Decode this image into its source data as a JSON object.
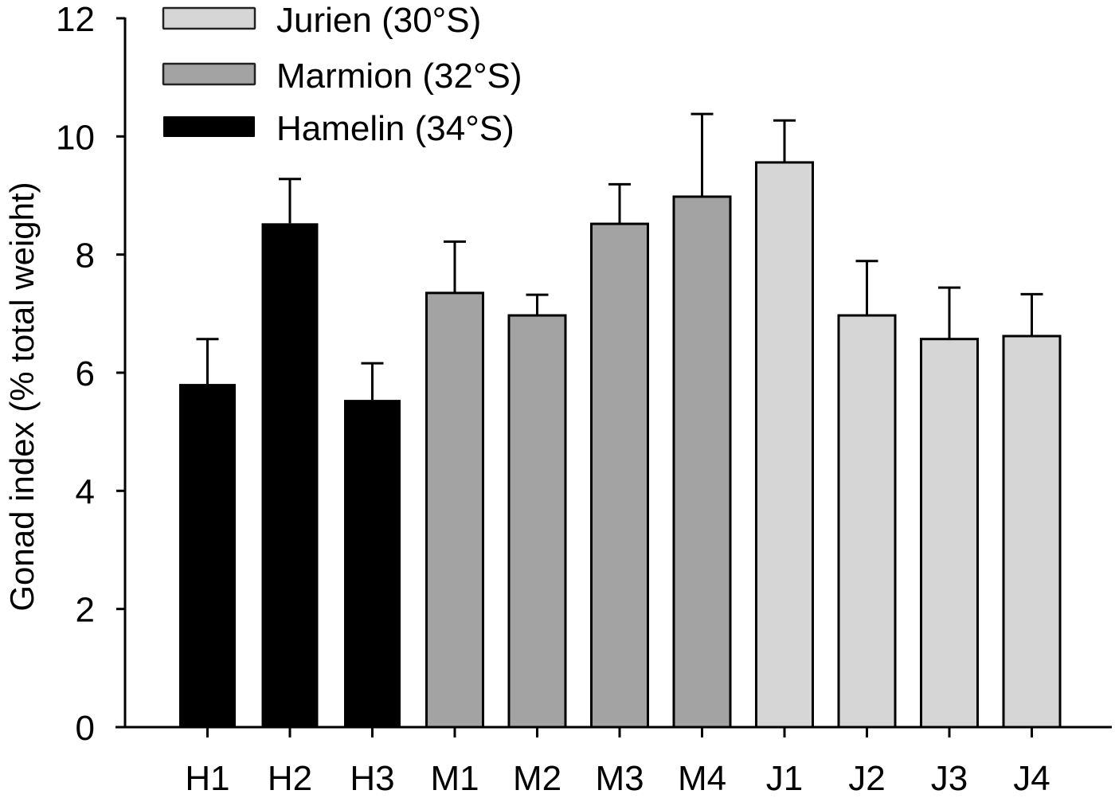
{
  "chart_data": {
    "type": "bar",
    "title": "",
    "xlabel": "",
    "ylabel": "Gonad index (% total weight)",
    "ylim": [
      0,
      12
    ],
    "yticks": [
      0,
      2,
      4,
      6,
      8,
      10,
      12
    ],
    "grid": false,
    "legend_position": "top-left",
    "categories": [
      "H1",
      "H2",
      "H3",
      "M1",
      "M2",
      "M3",
      "M4",
      "J1",
      "J2",
      "J3",
      "J4"
    ],
    "values": [
      5.81,
      8.53,
      5.54,
      7.35,
      6.97,
      8.52,
      8.98,
      9.56,
      6.97,
      6.57,
      6.62
    ],
    "error_upper": [
      0.76,
      0.75,
      0.62,
      0.87,
      0.35,
      0.67,
      1.4,
      0.71,
      0.92,
      0.87,
      0.71
    ],
    "category_group": [
      "Hamelin (34°S)",
      "Hamelin (34°S)",
      "Hamelin (34°S)",
      "Marmion (32°S)",
      "Marmion (32°S)",
      "Marmion (32°S)",
      "Marmion (32°S)",
      "Jurien (30°S)",
      "Jurien (30°S)",
      "Jurien (30°S)",
      "Jurien (30°S)"
    ],
    "series": [
      {
        "name": "Jurien (30°S)",
        "color": "#d6d6d6",
        "categories": [
          "J1",
          "J2",
          "J3",
          "J4"
        ],
        "values": [
          9.56,
          6.97,
          6.57,
          6.62
        ],
        "error_upper": [
          0.71,
          0.92,
          0.87,
          0.71
        ]
      },
      {
        "name": "Marmion (32°S)",
        "color": "#a3a3a3",
        "categories": [
          "M1",
          "M2",
          "M3",
          "M4"
        ],
        "values": [
          7.35,
          6.97,
          8.52,
          8.98
        ],
        "error_upper": [
          0.87,
          0.35,
          0.67,
          1.4
        ]
      },
      {
        "name": "Hamelin (34°S)",
        "color": "#000000",
        "categories": [
          "H1",
          "H2",
          "H3"
        ],
        "values": [
          5.81,
          8.53,
          5.54
        ],
        "error_upper": [
          0.76,
          0.75,
          0.62
        ]
      }
    ]
  },
  "legend": [
    {
      "label": "Jurien (30°S)",
      "color": "#d6d6d6"
    },
    {
      "label": "Marmion (32°S)",
      "color": "#a3a3a3"
    },
    {
      "label": "Hamelin (34°S)",
      "color": "#000000"
    }
  ],
  "colors": {
    "hamelin": "#000000",
    "marmion": "#a3a3a3",
    "jurien": "#d6d6d6",
    "axis": "#000000"
  }
}
